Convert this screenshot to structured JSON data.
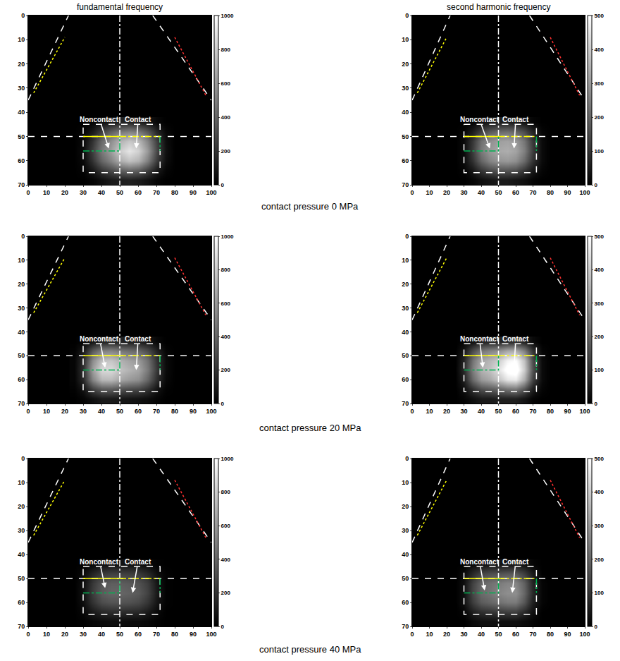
{
  "column_titles": [
    "fundamental frequency",
    "second harmonic frequency"
  ],
  "row_labels": [
    "contact pressure 0 MPa",
    "contact pressure 20 MPa",
    "contact pressure 40 MPa"
  ],
  "overlays": [
    {
      "x": [
        0,
        22
      ],
      "y": [
        35,
        0
      ],
      "color": "#ffffff",
      "line_style": "dash"
    },
    {
      "x": [
        3,
        20
      ],
      "y": [
        32,
        9
      ],
      "color": "#ffff00",
      "line_style": "dot"
    },
    {
      "x": [
        68,
        100
      ],
      "y": [
        0,
        35
      ],
      "color": "#ffffff",
      "line_style": "dash"
    },
    {
      "x": [
        80,
        97
      ],
      "y": [
        9,
        33
      ],
      "color": "#ff3030",
      "line_style": "dot"
    },
    {
      "x": [
        50,
        50
      ],
      "y": [
        0,
        70
      ],
      "color": "#ffffff",
      "line_style": "dashdot"
    },
    {
      "x": [
        0,
        100
      ],
      "y": [
        50,
        50
      ],
      "color": "#ffffff",
      "line_style": "dash"
    },
    {
      "x": [
        30,
        72,
        72,
        30,
        30
      ],
      "y": [
        45,
        45,
        65,
        65,
        45
      ],
      "color": "#ffffff",
      "line_style": "dash"
    },
    {
      "x": [
        30,
        50
      ],
      "y": [
        50,
        50
      ],
      "color": "#ffff00",
      "line_style": "solid"
    },
    {
      "x": [
        50,
        72
      ],
      "y": [
        50,
        50
      ],
      "color": "#ffff00",
      "line_style": "dashdot"
    },
    {
      "x": [
        30,
        50,
        50
      ],
      "y": [
        56,
        56,
        50
      ],
      "color": "#00b050",
      "line_style": "dashdot"
    },
    {
      "x": [
        72,
        72
      ],
      "y": [
        50,
        56
      ],
      "color": "#00b050",
      "line_style": "dashdot"
    }
  ],
  "chart_data": [
    {
      "type": "heatmap",
      "xlim": [
        0,
        100
      ],
      "xticks": [
        0,
        10,
        20,
        30,
        40,
        50,
        60,
        70,
        80,
        90,
        100
      ],
      "ylim": [
        70,
        0
      ],
      "yticks": [
        0,
        10,
        20,
        30,
        40,
        50,
        60,
        70
      ],
      "x": [
        25,
        30,
        35,
        40,
        45,
        50,
        55,
        60,
        65,
        70,
        75,
        80
      ],
      "y": [
        44,
        48,
        52,
        56,
        60,
        64,
        68
      ],
      "z": [
        [
          0,
          0,
          20,
          60,
          100,
          130,
          140,
          120,
          80,
          30,
          0,
          0
        ],
        [
          0,
          20,
          100,
          250,
          380,
          480,
          520,
          480,
          350,
          150,
          30,
          0
        ],
        [
          0,
          40,
          200,
          420,
          560,
          700,
          780,
          720,
          520,
          250,
          50,
          0
        ],
        [
          0,
          50,
          250,
          480,
          620,
          800,
          900,
          820,
          600,
          280,
          60,
          0
        ],
        [
          0,
          40,
          200,
          400,
          520,
          680,
          760,
          700,
          500,
          230,
          50,
          0
        ],
        [
          0,
          20,
          100,
          220,
          300,
          380,
          420,
          380,
          260,
          110,
          20,
          0
        ],
        [
          0,
          0,
          20,
          60,
          100,
          120,
          130,
          110,
          70,
          20,
          0,
          0
        ]
      ],
      "colorbar": {
        "range": [
          0,
          1000
        ],
        "ticks": [
          0,
          200,
          400,
          600,
          800,
          1000
        ]
      },
      "annotations": [
        {
          "text": "Noncontact",
          "x": 44,
          "y": 55,
          "ax": 39,
          "ay": 43
        },
        {
          "text": "Contact",
          "x": 59,
          "y": 55,
          "ax": 60,
          "ay": 43
        }
      ]
    },
    {
      "type": "heatmap",
      "xlim": [
        0,
        100
      ],
      "xticks": [
        0,
        10,
        20,
        30,
        40,
        50,
        60,
        70,
        80,
        90,
        100
      ],
      "ylim": [
        70,
        0
      ],
      "yticks": [
        0,
        10,
        20,
        30,
        40,
        50,
        60,
        70
      ],
      "x": [
        25,
        30,
        35,
        40,
        45,
        50,
        55,
        60,
        65,
        70,
        75,
        80
      ],
      "y": [
        44,
        48,
        52,
        56,
        60,
        64,
        68
      ],
      "z": [
        [
          0,
          0,
          10,
          30,
          50,
          60,
          60,
          50,
          30,
          10,
          0,
          0
        ],
        [
          0,
          10,
          60,
          130,
          180,
          210,
          220,
          200,
          150,
          70,
          10,
          0
        ],
        [
          0,
          20,
          110,
          220,
          280,
          310,
          320,
          300,
          230,
          110,
          20,
          0
        ],
        [
          0,
          20,
          120,
          240,
          300,
          330,
          340,
          320,
          250,
          120,
          20,
          0
        ],
        [
          0,
          20,
          100,
          200,
          260,
          290,
          300,
          280,
          210,
          100,
          20,
          0
        ],
        [
          0,
          10,
          50,
          110,
          150,
          170,
          170,
          160,
          110,
          50,
          10,
          0
        ],
        [
          0,
          0,
          10,
          30,
          40,
          50,
          50,
          40,
          30,
          10,
          0,
          0
        ]
      ],
      "colorbar": {
        "range": [
          0,
          500
        ],
        "ticks": [
          0,
          100,
          200,
          300,
          400,
          500
        ]
      },
      "annotations": [
        {
          "text": "Noncontact",
          "x": 45,
          "y": 55,
          "ax": 39,
          "ay": 43
        },
        {
          "text": "Contact",
          "x": 59,
          "y": 55,
          "ax": 60,
          "ay": 43
        }
      ]
    },
    {
      "type": "heatmap",
      "xlim": [
        0,
        100
      ],
      "xticks": [
        0,
        10,
        20,
        30,
        40,
        50,
        60,
        70,
        80,
        90,
        100
      ],
      "ylim": [
        70,
        0
      ],
      "yticks": [
        0,
        10,
        20,
        30,
        40,
        50,
        60,
        70
      ],
      "x": [
        25,
        30,
        35,
        40,
        45,
        50,
        55,
        60,
        65,
        70,
        75,
        80
      ],
      "y": [
        44,
        48,
        52,
        56,
        60,
        64,
        68
      ],
      "z": [
        [
          0,
          20,
          80,
          130,
          140,
          130,
          120,
          110,
          80,
          30,
          0,
          0
        ],
        [
          10,
          100,
          350,
          500,
          520,
          470,
          430,
          400,
          300,
          130,
          20,
          0
        ],
        [
          20,
          180,
          550,
          760,
          780,
          700,
          640,
          600,
          450,
          200,
          40,
          0
        ],
        [
          20,
          200,
          620,
          850,
          860,
          760,
          700,
          650,
          480,
          220,
          40,
          0
        ],
        [
          20,
          170,
          520,
          720,
          730,
          650,
          600,
          560,
          400,
          180,
          30,
          0
        ],
        [
          10,
          80,
          260,
          360,
          370,
          330,
          300,
          280,
          200,
          80,
          10,
          0
        ],
        [
          0,
          20,
          60,
          100,
          100,
          90,
          80,
          70,
          50,
          20,
          0,
          0
        ]
      ],
      "colorbar": {
        "range": [
          0,
          1000
        ],
        "ticks": [
          0,
          200,
          400,
          600,
          800,
          1000
        ]
      },
      "annotations": [
        {
          "text": "Noncontact",
          "x": 42,
          "y": 55,
          "ax": 39,
          "ay": 43
        },
        {
          "text": "Contact",
          "x": 59,
          "y": 56,
          "ax": 60,
          "ay": 43
        }
      ]
    },
    {
      "type": "heatmap",
      "xlim": [
        0,
        100
      ],
      "xticks": [
        0,
        10,
        20,
        30,
        40,
        50,
        60,
        70,
        80,
        90,
        100
      ],
      "ylim": [
        70,
        0
      ],
      "yticks": [
        0,
        10,
        20,
        30,
        40,
        50,
        60,
        70
      ],
      "x": [
        25,
        30,
        35,
        40,
        45,
        50,
        55,
        60,
        65,
        70,
        75,
        80
      ],
      "y": [
        44,
        48,
        52,
        56,
        60,
        64,
        68
      ],
      "z": [
        [
          0,
          10,
          30,
          60,
          70,
          70,
          80,
          80,
          60,
          20,
          0,
          0
        ],
        [
          0,
          40,
          150,
          230,
          260,
          280,
          330,
          340,
          250,
          100,
          10,
          0
        ],
        [
          0,
          70,
          230,
          330,
          360,
          400,
          480,
          500,
          380,
          150,
          20,
          0
        ],
        [
          0,
          80,
          250,
          350,
          380,
          440,
          520,
          540,
          400,
          160,
          20,
          0
        ],
        [
          0,
          60,
          210,
          300,
          330,
          380,
          450,
          460,
          340,
          130,
          20,
          0
        ],
        [
          0,
          30,
          100,
          160,
          180,
          200,
          230,
          240,
          170,
          60,
          10,
          0
        ],
        [
          0,
          10,
          30,
          50,
          50,
          60,
          60,
          60,
          40,
          10,
          0,
          0
        ]
      ],
      "colorbar": {
        "range": [
          0,
          500
        ],
        "ticks": [
          0,
          100,
          200,
          300,
          400,
          500
        ]
      },
      "annotations": [
        {
          "text": "Noncontact",
          "x": 41,
          "y": 55,
          "ax": 39,
          "ay": 43
        },
        {
          "text": "Contact",
          "x": 59,
          "y": 56,
          "ax": 60,
          "ay": 43
        }
      ]
    },
    {
      "type": "heatmap",
      "xlim": [
        0,
        100
      ],
      "xticks": [
        0,
        10,
        20,
        30,
        40,
        50,
        60,
        70,
        80,
        90,
        100
      ],
      "ylim": [
        70,
        0
      ],
      "yticks": [
        0,
        10,
        20,
        30,
        40,
        50,
        60,
        70
      ],
      "x": [
        25,
        30,
        35,
        40,
        45,
        50,
        55,
        60,
        65,
        70,
        75,
        80
      ],
      "y": [
        44,
        48,
        52,
        56,
        60,
        64,
        68
      ],
      "z": [
        [
          0,
          10,
          30,
          60,
          70,
          70,
          70,
          60,
          40,
          10,
          0,
          0
        ],
        [
          0,
          40,
          140,
          220,
          250,
          250,
          240,
          220,
          160,
          60,
          10,
          0
        ],
        [
          0,
          60,
          220,
          330,
          370,
          370,
          350,
          320,
          240,
          90,
          10,
          0
        ],
        [
          0,
          70,
          240,
          360,
          400,
          400,
          380,
          350,
          260,
          100,
          10,
          0
        ],
        [
          0,
          60,
          200,
          300,
          330,
          330,
          320,
          290,
          210,
          80,
          10,
          0
        ],
        [
          0,
          30,
          100,
          150,
          170,
          170,
          160,
          150,
          100,
          40,
          0,
          0
        ],
        [
          0,
          10,
          30,
          40,
          50,
          50,
          40,
          40,
          30,
          10,
          0,
          0
        ]
      ],
      "colorbar": {
        "range": [
          0,
          1000
        ],
        "ticks": [
          0,
          200,
          400,
          600,
          800,
          1000
        ]
      },
      "annotations": [
        {
          "text": "Noncontact",
          "x": 42,
          "y": 54,
          "ax": 39,
          "ay": 43
        },
        {
          "text": "Contact",
          "x": 57,
          "y": 56,
          "ax": 60,
          "ay": 43
        }
      ]
    },
    {
      "type": "heatmap",
      "xlim": [
        0,
        100
      ],
      "xticks": [
        0,
        10,
        20,
        30,
        40,
        50,
        60,
        70,
        80,
        90,
        100
      ],
      "ylim": [
        70,
        0
      ],
      "yticks": [
        0,
        10,
        20,
        30,
        40,
        50,
        60,
        70
      ],
      "x": [
        25,
        30,
        35,
        40,
        45,
        50,
        55,
        60,
        65,
        70,
        75,
        80
      ],
      "y": [
        44,
        48,
        52,
        56,
        60,
        64,
        68
      ],
      "z": [
        [
          0,
          0,
          20,
          30,
          40,
          40,
          40,
          40,
          30,
          10,
          0,
          0
        ],
        [
          0,
          20,
          80,
          130,
          150,
          160,
          170,
          170,
          120,
          50,
          0,
          0
        ],
        [
          0,
          30,
          130,
          200,
          220,
          240,
          260,
          260,
          190,
          70,
          10,
          0
        ],
        [
          0,
          30,
          140,
          210,
          230,
          260,
          280,
          280,
          200,
          80,
          10,
          0
        ],
        [
          0,
          30,
          120,
          180,
          200,
          220,
          240,
          240,
          170,
          60,
          10,
          0
        ],
        [
          0,
          10,
          60,
          90,
          100,
          110,
          120,
          120,
          80,
          30,
          0,
          0
        ],
        [
          0,
          0,
          20,
          30,
          30,
          30,
          30,
          30,
          20,
          10,
          0,
          0
        ]
      ],
      "colorbar": {
        "range": [
          0,
          500
        ],
        "ticks": [
          0,
          100,
          200,
          300,
          400,
          500
        ]
      },
      "annotations": [
        {
          "text": "Noncontact",
          "x": 42,
          "y": 55,
          "ax": 39,
          "ay": 43
        },
        {
          "text": "Contact",
          "x": 58,
          "y": 56,
          "ax": 60,
          "ay": 43
        }
      ]
    }
  ]
}
